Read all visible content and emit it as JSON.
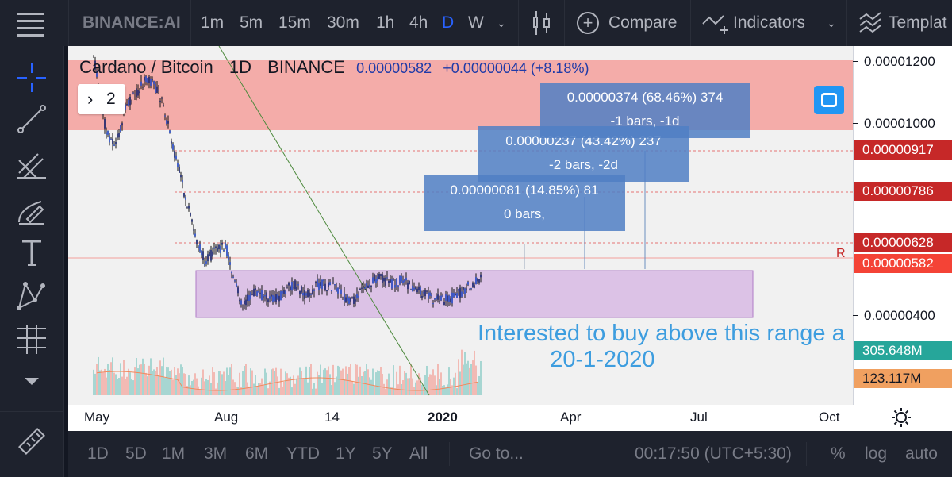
{
  "toolbar": {
    "symbol": "BINANCE:AI",
    "intervals": [
      "1m",
      "5m",
      "15m",
      "30m",
      "1h",
      "4h",
      "D",
      "W"
    ],
    "active_interval": "D",
    "compare_label": "Compare",
    "indicators_label": "Indicators",
    "templates_label": "Templat"
  },
  "legend": {
    "pair": "Cardano / Bitcoin",
    "interval": "1D",
    "exchange": "BINANCE",
    "price": "0.00000582",
    "change": "+0.00000044 (+8.18%)",
    "indicators_count": "2"
  },
  "price_axis": {
    "labels": [
      "0.00001200",
      "0.00001000",
      "0.00000400"
    ],
    "badges": [
      {
        "value": "0.00000917",
        "color": "#c62828"
      },
      {
        "value": "0.00000786",
        "color": "#c62828"
      },
      {
        "value": "0.00000628",
        "color": "#c62828"
      },
      {
        "value": "0.00000582",
        "color": "#f44336"
      },
      {
        "value": "305.648M",
        "color": "#26a69a"
      },
      {
        "value": "123.117M",
        "color": "#f0a060"
      }
    ],
    "marker": "R"
  },
  "time_axis": [
    "May",
    "Aug",
    "14",
    "2020",
    "Apr",
    "Jul",
    "Oct"
  ],
  "measures": [
    {
      "line1": "0.00000081 (14.85%) 81",
      "line2": "0 bars,"
    },
    {
      "line1": "0.00000237 (43.42%) 237",
      "line2": "-2 bars, -2d"
    },
    {
      "line1": "0.00000374 (68.46%) 374",
      "line2": "-1 bars, -1d"
    }
  ],
  "annotation": {
    "line1": "Interested to buy above this range a",
    "line2": "20-1-2020"
  },
  "bottom": {
    "ranges": [
      "1D",
      "5D",
      "1M",
      "3M",
      "6M",
      "YTD",
      "1Y",
      "5Y",
      "All"
    ],
    "goto": "Go to...",
    "clock": "00:17:50 (UTC+5:30)",
    "percent": "%",
    "log": "log",
    "auto": "auto"
  },
  "colors": {
    "accent": "#2962ff",
    "resistance_zone": "#f4a09c",
    "range_box": "#dcc2e6"
  }
}
